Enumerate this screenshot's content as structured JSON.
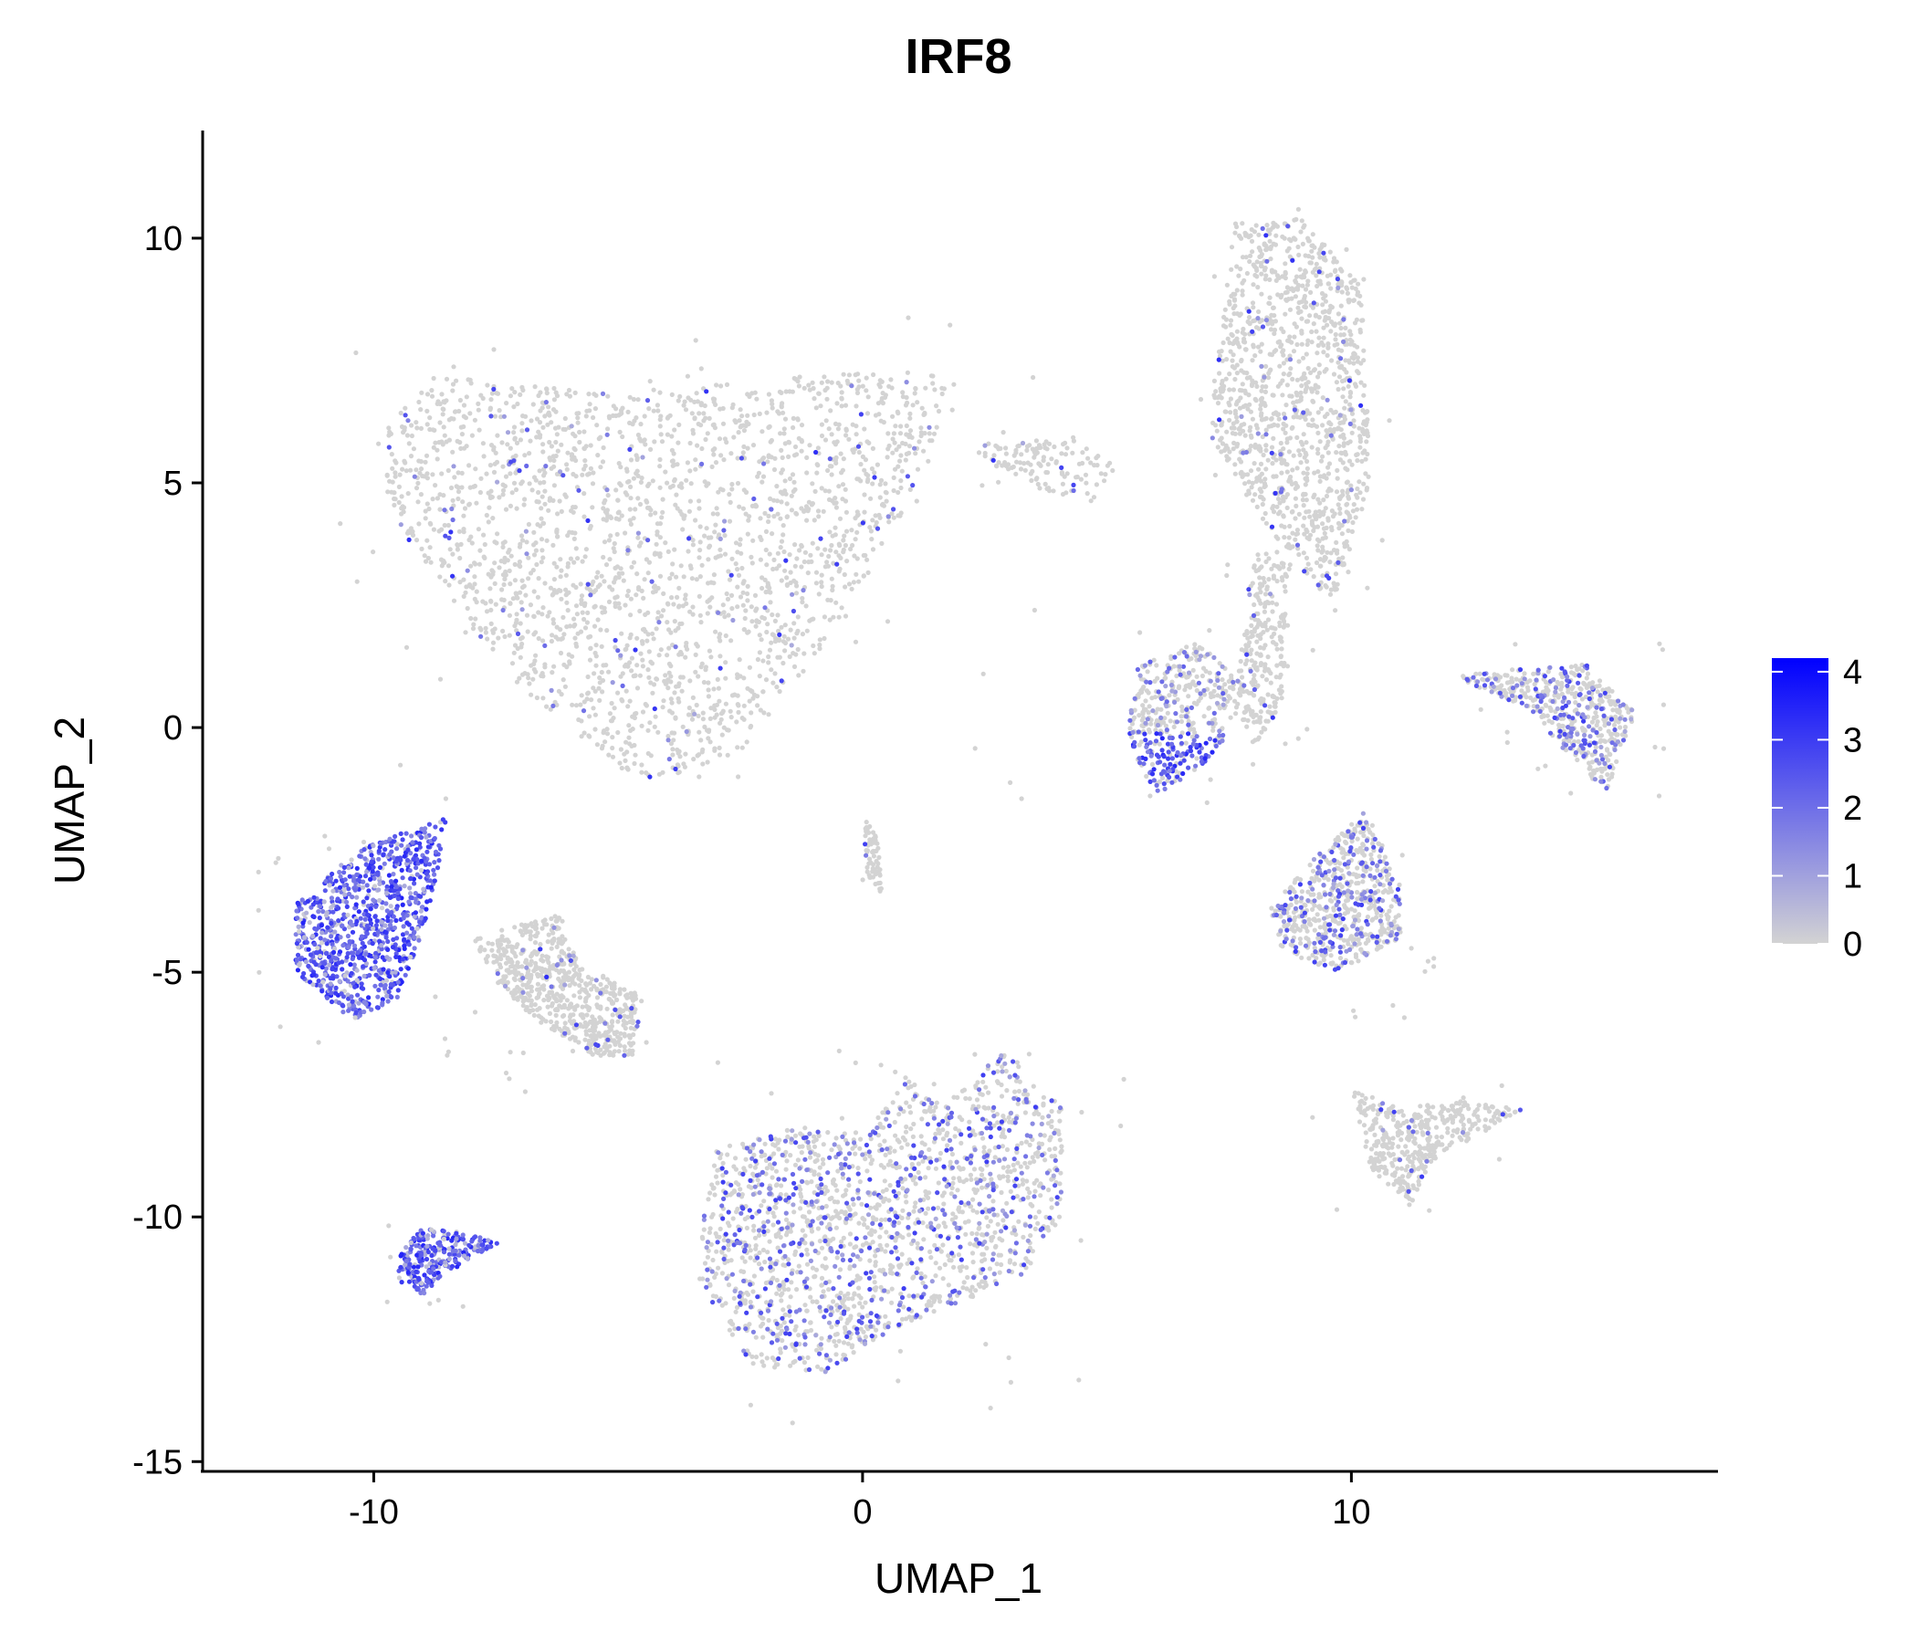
{
  "chart_data": {
    "type": "scatter",
    "title": "IRF8",
    "xlabel": "UMAP_1",
    "ylabel": "UMAP_2",
    "xlim": [
      -13.5,
      17.5
    ],
    "ylim": [
      -15.2,
      12.2
    ],
    "xticks": [
      -10,
      0,
      10
    ],
    "xtick_labels": [
      "-10",
      "0",
      "10"
    ],
    "yticks": [
      10,
      5,
      0,
      -5,
      -10,
      -15
    ],
    "ytick_labels": [
      "10",
      "5",
      "0",
      "-5",
      "-10",
      "-15"
    ],
    "grid": false,
    "legend": {
      "placement": "right",
      "title": "",
      "range": [
        0,
        4.2
      ],
      "ticks": [
        4,
        3,
        2,
        1,
        0
      ],
      "tick_labels": [
        "4",
        "3",
        "2",
        "1",
        "0"
      ],
      "low_color": "#d3d3d3",
      "high_color": "#0000ff"
    },
    "point_color_low": "#d3d3d3",
    "point_color_high": "#0000ff",
    "clusters": [
      {
        "name": "large-upper-left",
        "center": [
          -3.5,
          3.5
        ],
        "expression": "low",
        "shape": "triangle-blob",
        "vertices": [
          [
            -10,
            5.8
          ],
          [
            -8.8,
            7.2
          ],
          [
            -5,
            6.8
          ],
          [
            -1,
            7.2
          ],
          [
            2,
            7.3
          ],
          [
            1.2,
            5
          ],
          [
            -0.5,
            2
          ],
          [
            -2.5,
            -0.5
          ],
          [
            -4.5,
            -1.2
          ],
          [
            -7.2,
            1
          ],
          [
            -9.5,
            4
          ]
        ],
        "n": 2200
      },
      {
        "name": "upper-right-tall",
        "center": [
          8.8,
          6
        ],
        "expression": "low",
        "shape": "tall-blob",
        "vertices": [
          [
            7.3,
            7.8
          ],
          [
            7.6,
            10.3
          ],
          [
            9,
            10.4
          ],
          [
            10.2,
            9
          ],
          [
            10.4,
            5
          ],
          [
            9.6,
            2.5
          ],
          [
            9.0,
            3.2
          ],
          [
            8.0,
            4.5
          ],
          [
            7.1,
            6
          ]
        ],
        "n": 1200
      },
      {
        "name": "stalk",
        "center": [
          8.5,
          1.5
        ],
        "expression": "low",
        "shape": "stalk",
        "vertices": [
          [
            8.0,
            3.6
          ],
          [
            8.8,
            3.6
          ],
          [
            8.6,
            0.5
          ],
          [
            8.0,
            -0.5
          ],
          [
            7.6,
            0.5
          ]
        ],
        "n": 250
      },
      {
        "name": "right-small-low",
        "center": [
          6.8,
          0.3
        ],
        "expression": "high-edge",
        "shape": "blob",
        "vertices": [
          [
            5.6,
            1.2
          ],
          [
            6.8,
            1.8
          ],
          [
            7.9,
            0.8
          ],
          [
            7.2,
            -0.6
          ],
          [
            6.0,
            -1.4
          ],
          [
            5.4,
            -0.2
          ]
        ],
        "n": 420
      },
      {
        "name": "upper-middle-small",
        "center": [
          4.3,
          5.2
        ],
        "expression": "low",
        "shape": "blob",
        "vertices": [
          [
            2.3,
            5.8
          ],
          [
            4.2,
            6.0
          ],
          [
            5.2,
            5.4
          ],
          [
            4.8,
            4.6
          ],
          [
            3.8,
            4.8
          ],
          [
            2.6,
            5.4
          ]
        ],
        "n": 120
      },
      {
        "name": "far-right",
        "center": [
          14.5,
          0.2
        ],
        "expression": "mid",
        "shape": "crescent",
        "vertices": [
          [
            12.2,
            1.1
          ],
          [
            14.8,
            1.3
          ],
          [
            15.8,
            0.3
          ],
          [
            15.2,
            -1.4
          ],
          [
            14.4,
            -0.5
          ],
          [
            13.6,
            0.4
          ],
          [
            12.4,
            0.9
          ]
        ],
        "n": 500
      },
      {
        "name": "right-middle",
        "center": [
          10.2,
          -4.0
        ],
        "expression": "mid",
        "shape": "blob",
        "vertices": [
          [
            8.3,
            -3.7
          ],
          [
            9.5,
            -2.4
          ],
          [
            10.3,
            -1.7
          ],
          [
            11.0,
            -3.2
          ],
          [
            11.0,
            -4.3
          ],
          [
            9.8,
            -5.0
          ],
          [
            8.6,
            -4.6
          ]
        ],
        "n": 620
      },
      {
        "name": "right-lower",
        "center": [
          11.2,
          -8.5
        ],
        "expression": "low",
        "shape": "blob",
        "vertices": [
          [
            10.0,
            -7.4
          ],
          [
            11.1,
            -7.8
          ],
          [
            12.0,
            -7.6
          ],
          [
            13.5,
            -7.8
          ],
          [
            11.6,
            -8.9
          ],
          [
            11.2,
            -9.8
          ],
          [
            10.4,
            -9.0
          ]
        ],
        "n": 400
      },
      {
        "name": "center-small",
        "center": [
          0.2,
          -2.6
        ],
        "expression": "low",
        "shape": "sliver",
        "vertices": [
          [
            0.0,
            -1.8
          ],
          [
            0.3,
            -2.2
          ],
          [
            0.4,
            -3.4
          ],
          [
            0.1,
            -3.0
          ]
        ],
        "n": 60
      },
      {
        "name": "left-middle-high",
        "center": [
          -10.5,
          -4.3
        ],
        "expression": "high",
        "shape": "blob",
        "vertices": [
          [
            -11.6,
            -3.6
          ],
          [
            -10.3,
            -2.5
          ],
          [
            -8.5,
            -1.8
          ],
          [
            -8.8,
            -3.6
          ],
          [
            -9.5,
            -5.5
          ],
          [
            -10.4,
            -6.0
          ],
          [
            -11.6,
            -5.0
          ]
        ],
        "n": 900
      },
      {
        "name": "left-middle-gray",
        "center": [
          -6.5,
          -5.8
        ],
        "expression": "low",
        "shape": "blob",
        "vertices": [
          [
            -8.0,
            -4.3
          ],
          [
            -6.2,
            -3.8
          ],
          [
            -5.8,
            -4.8
          ],
          [
            -4.5,
            -5.5
          ],
          [
            -4.7,
            -6.7
          ],
          [
            -5.6,
            -6.7
          ],
          [
            -7.2,
            -5.6
          ]
        ],
        "n": 650
      },
      {
        "name": "bottom-left-small-high",
        "center": [
          -9.0,
          -11.0
        ],
        "expression": "high",
        "shape": "comet",
        "vertices": [
          [
            -9.5,
            -10.8
          ],
          [
            -9.0,
            -10.2
          ],
          [
            -7.4,
            -10.5
          ],
          [
            -8.6,
            -11.2
          ],
          [
            -9.0,
            -11.6
          ],
          [
            -9.5,
            -11.3
          ]
        ],
        "n": 260
      },
      {
        "name": "bottom-center-large",
        "center": [
          1.0,
          -10.5
        ],
        "expression": "mid",
        "shape": "blob",
        "vertices": [
          [
            -3.3,
            -10.2
          ],
          [
            -3.0,
            -8.6
          ],
          [
            -1.6,
            -8.2
          ],
          [
            0.2,
            -8.3
          ],
          [
            0.7,
            -6.9
          ],
          [
            1.6,
            -7.8
          ],
          [
            2.9,
            -6.6
          ],
          [
            4.1,
            -7.7
          ],
          [
            4.1,
            -10.0
          ],
          [
            3.2,
            -11.3
          ],
          [
            0.8,
            -12.2
          ],
          [
            -0.8,
            -13.2
          ],
          [
            -2.4,
            -13.0
          ],
          [
            -3.2,
            -11.5
          ]
        ],
        "n": 1800
      }
    ]
  }
}
